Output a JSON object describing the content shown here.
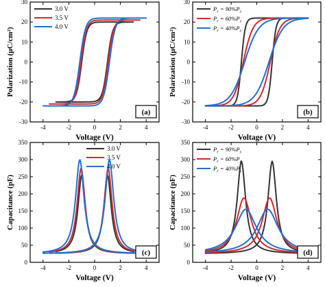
{
  "colors": {
    "black": "#333333",
    "red": "#d62728",
    "blue": "#1f6fd1"
  },
  "chart_data": [
    {
      "type": "line",
      "panel_label": "(a)",
      "xlabel": "Voltage (V)",
      "ylabel": "Polarization (μC/cm²)",
      "xlim": [
        -5,
        5
      ],
      "ylim": [
        -30,
        30
      ],
      "xticks": [
        -4,
        -2,
        0,
        2,
        4
      ],
      "yticks": [
        -30,
        -20,
        -10,
        0,
        10,
        20,
        30
      ],
      "legend_position": "top-left",
      "series": [
        {
          "name": "3.0 V",
          "color": "#333333",
          "amplitude": 3.0,
          "saturation": 20,
          "coercive": 1.0,
          "width": 0.4
        },
        {
          "name": "3.5 V",
          "color": "#d62728",
          "amplitude": 3.5,
          "saturation": 21,
          "coercive": 1.05,
          "width": 0.42
        },
        {
          "name": "4.0 V",
          "color": "#1f6fd1",
          "amplitude": 4.0,
          "saturation": 22,
          "coercive": 1.15,
          "width": 0.45
        }
      ]
    },
    {
      "type": "line",
      "panel_label": "(b)",
      "xlabel": "Voltage (V)",
      "ylabel": "Polarization (μC/cm²)",
      "xlim": [
        -5,
        5
      ],
      "ylim": [
        -30,
        30
      ],
      "xticks": [
        -4,
        -2,
        0,
        2,
        4
      ],
      "yticks": [
        -30,
        -20,
        -10,
        0,
        10,
        20,
        30
      ],
      "legend_position": "top-left",
      "series": [
        {
          "name": "Pr = 90%Ps",
          "legend": {
            "a": "P",
            "asub": "r",
            "b": " = 90%",
            "c": "P",
            "csub": "s"
          },
          "color": "#333333",
          "amplitude": 4.0,
          "saturation": 22,
          "coercive": 1.2,
          "width": 0.3
        },
        {
          "name": "Pr = 60%Ps",
          "legend": {
            "a": "P",
            "asub": "r",
            "b": " = 60%",
            "c": "P",
            "csub": "s"
          },
          "color": "#d62728",
          "amplitude": 4.0,
          "saturation": 22,
          "coercive": 1.05,
          "width": 0.75
        },
        {
          "name": "Pr = 40%Ps",
          "legend": {
            "a": "P",
            "asub": "r",
            "b": " = 40%",
            "c": "P",
            "csub": "s"
          },
          "color": "#1f6fd1",
          "amplitude": 4.0,
          "saturation": 22,
          "coercive": 0.95,
          "width": 1.1
        }
      ]
    },
    {
      "type": "line",
      "panel_label": "(c)",
      "xlabel": "Voltage (V)",
      "ylabel": "Capacitance (pF)",
      "xlim": [
        -5,
        5
      ],
      "ylim": [
        0,
        350
      ],
      "xticks": [
        -4,
        -2,
        0,
        2,
        4
      ],
      "yticks": [
        0,
        50,
        100,
        150,
        200,
        250,
        300,
        350
      ],
      "legend_position": "top-right",
      "series": [
        {
          "name": "3.0 V",
          "color": "#333333",
          "amplitude": 3.0,
          "peak_position": 1.0,
          "peak_value": 255,
          "baseline": 25,
          "width": 0.35
        },
        {
          "name": "3.5 V",
          "color": "#d62728",
          "amplitude": 3.5,
          "peak_position": 1.05,
          "peak_value": 275,
          "baseline": 25,
          "width": 0.37
        },
        {
          "name": "4.0 V",
          "color": "#1f6fd1",
          "amplitude": 4.0,
          "peak_position": 1.15,
          "peak_value": 300,
          "baseline": 25,
          "width": 0.4
        }
      ]
    },
    {
      "type": "line",
      "panel_label": "(d)",
      "xlabel": "Voltage (V)",
      "ylabel": "Capacitance (pF)",
      "xlim": [
        -5,
        5
      ],
      "ylim": [
        0,
        350
      ],
      "xticks": [
        -4,
        -2,
        0,
        2,
        4
      ],
      "yticks": [
        0,
        50,
        100,
        150,
        200,
        250,
        300,
        350
      ],
      "legend_position": "top-left",
      "series": [
        {
          "name": "Pr = 90%Ps",
          "legend": {
            "a": "P",
            "asub": "r",
            "b": " = 90%",
            "c": "P",
            "csub": "s"
          },
          "color": "#333333",
          "amplitude": 4.0,
          "peak_position": 1.2,
          "peak_value": 295,
          "baseline": 25,
          "width": 0.4
        },
        {
          "name": "Pr = 60%Ps",
          "legend": {
            "a": "P",
            "asub": "r",
            "b": " = 60%",
            "c": "P",
            "csub": "s"
          },
          "color": "#d62728",
          "amplitude": 4.0,
          "peak_position": 1.0,
          "peak_value": 188,
          "baseline": 25,
          "width": 0.7
        },
        {
          "name": "Pr = 40%Ps",
          "legend": {
            "a": "P",
            "asub": "r",
            "b": " = 40%",
            "c": "P",
            "csub": "s"
          },
          "color": "#1f6fd1",
          "amplitude": 4.0,
          "peak_position": 0.85,
          "peak_value": 155,
          "baseline": 25,
          "width": 1.0
        }
      ]
    }
  ]
}
